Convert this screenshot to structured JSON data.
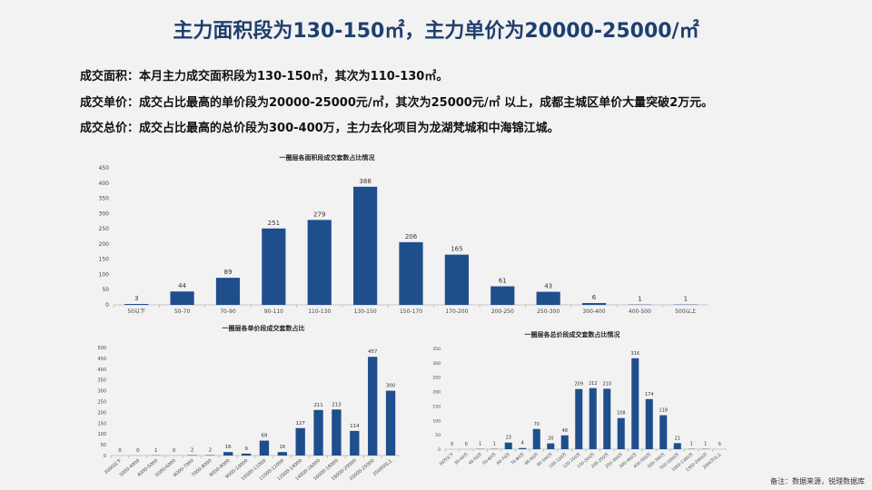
{
  "header": {
    "title": "主力面积段为130-150㎡，主力单价为20000-25000/㎡"
  },
  "summary": [
    {
      "label": "成交面积：",
      "text": "本月主力成交面积段为130-150㎡，其次为110-130㎡。"
    },
    {
      "label": "成交单价：",
      "text": "成交占比最高的单价段为20000-25000元/㎡，其次为25000元/㎡ 以上，成都主城区单价大量突破2万元。"
    },
    {
      "label": "成交总价：",
      "text": "成交占比最高的总价段为300-400万，主力去化项目为龙湖梵城和中海锦江城。"
    }
  ],
  "footnote": "备注：数据来源，锐理数据库",
  "colors": {
    "bar": "#1f4e8c",
    "title": "#1f3f6e"
  },
  "chart_data": [
    {
      "type": "bar",
      "title": "一圈层各面积段成交套数占比情况",
      "categories": [
        "50以下",
        "50-70",
        "70-90",
        "90-110",
        "110-130",
        "130-150",
        "150-170",
        "170-200",
        "200-250",
        "250-300",
        "300-400",
        "400-500",
        "500以上"
      ],
      "values": [
        3,
        44,
        89,
        251,
        279,
        388,
        206,
        165,
        61,
        43,
        6,
        1,
        1
      ],
      "ylim": [
        0,
        450
      ],
      "yticks": [
        0,
        50,
        100,
        150,
        200,
        250,
        300,
        350,
        400,
        450
      ],
      "grid": false
    },
    {
      "type": "bar",
      "title": "一圈层各单价段成交套数占比",
      "categories": [
        "3000以下",
        "3000-4000",
        "4000-5000",
        "5000-6000",
        "6000-7000",
        "7000-8000",
        "8000-9000",
        "9000-10000",
        "10000-11000",
        "11000-12000",
        "12000-14000",
        "14000-16000",
        "16000-18000",
        "18000-20000",
        "20000-25000",
        "25000以上"
      ],
      "values": [
        0,
        0,
        1,
        0,
        2,
        2,
        16,
        9,
        69,
        16,
        127,
        211,
        213,
        114,
        457,
        300
      ],
      "ylim": [
        0,
        500
      ],
      "yticks": [
        0,
        50,
        100,
        150,
        200,
        250,
        300,
        350,
        400,
        450,
        500
      ],
      "grid": false
    },
    {
      "type": "bar",
      "title": "一圈层各总价段成交套数占比情况",
      "categories": [
        "30万以下",
        "30-40万",
        "40-50万",
        "50-60万",
        "60-70万",
        "70-80万",
        "80-90万",
        "90-100万",
        "100-120万",
        "120-150万",
        "150-200万",
        "200-250万",
        "250-300万",
        "300-400万",
        "400-500万",
        "500-700万",
        "700-1000万",
        "1000-1300万",
        "1300-2000万",
        "2000万以上"
      ],
      "values": [
        0,
        0,
        1,
        1,
        23,
        4,
        70,
        20,
        48,
        209,
        212,
        210,
        108,
        316,
        174,
        118,
        21,
        1,
        1,
        0
      ],
      "ylim": [
        0,
        350
      ],
      "yticks": [
        0,
        50,
        100,
        150,
        200,
        250,
        300,
        350
      ],
      "grid": false
    }
  ]
}
